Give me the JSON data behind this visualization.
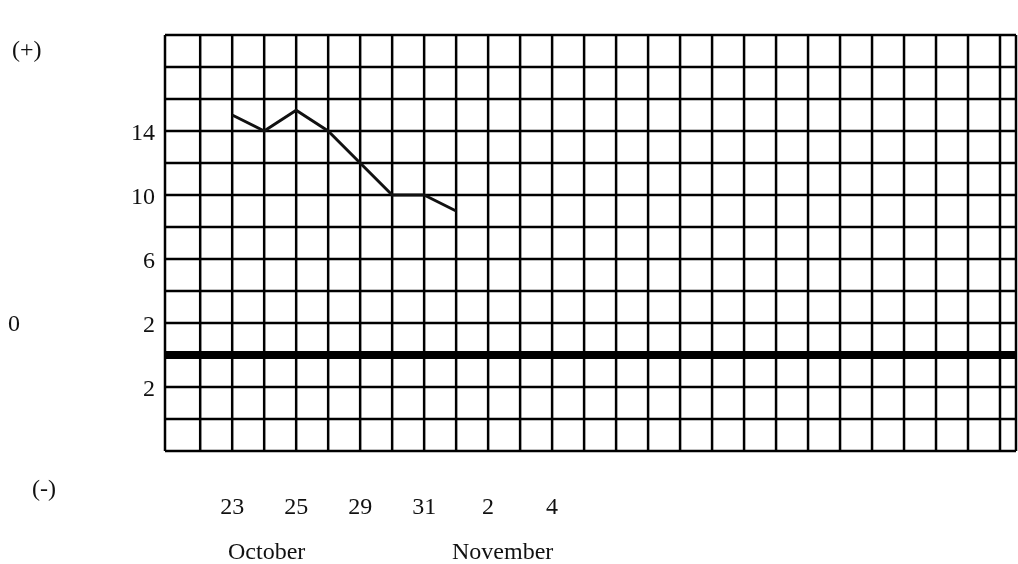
{
  "chart_data": {
    "type": "line",
    "categories": [
      null,
      "23",
      null,
      "25",
      null,
      "29",
      null,
      "31",
      null,
      "2",
      null,
      "4",
      null,
      null,
      null,
      null,
      null,
      null,
      null,
      null,
      null,
      null,
      null,
      null,
      null,
      null
    ],
    "series": [
      {
        "color": "#111111",
        "values": [
          null,
          15,
          14,
          15.3,
          14,
          12,
          10,
          10,
          9,
          null,
          null,
          null,
          null,
          null,
          null,
          null,
          null,
          null,
          null,
          null,
          null,
          null,
          null,
          null,
          null,
          null
        ]
      }
    ],
    "ylim": [
      -6,
      20
    ],
    "yticks": [
      {
        "value": -6,
        "label": null
      },
      {
        "value": -4,
        "label": null
      },
      {
        "value": -2,
        "label": "2"
      },
      {
        "value": 0,
        "label": null
      },
      {
        "value": 2,
        "label": "2"
      },
      {
        "value": 4,
        "label": null
      },
      {
        "value": 6,
        "label": "6"
      },
      {
        "value": 8,
        "label": null
      },
      {
        "value": 10,
        "label": "10"
      },
      {
        "value": 12,
        "label": null
      },
      {
        "value": 14,
        "label": "14"
      },
      {
        "value": 16,
        "label": null
      },
      {
        "value": 18,
        "label": null
      },
      {
        "value": 20,
        "label": null
      }
    ],
    "ref_lines": [
      {
        "axis": "y",
        "value": 0,
        "color": "#000000"
      }
    ],
    "grid": true,
    "marker": "none",
    "line_style": "solid",
    "annotations": [
      "(+)",
      "0",
      "(-)",
      "October",
      "November"
    ]
  }
}
